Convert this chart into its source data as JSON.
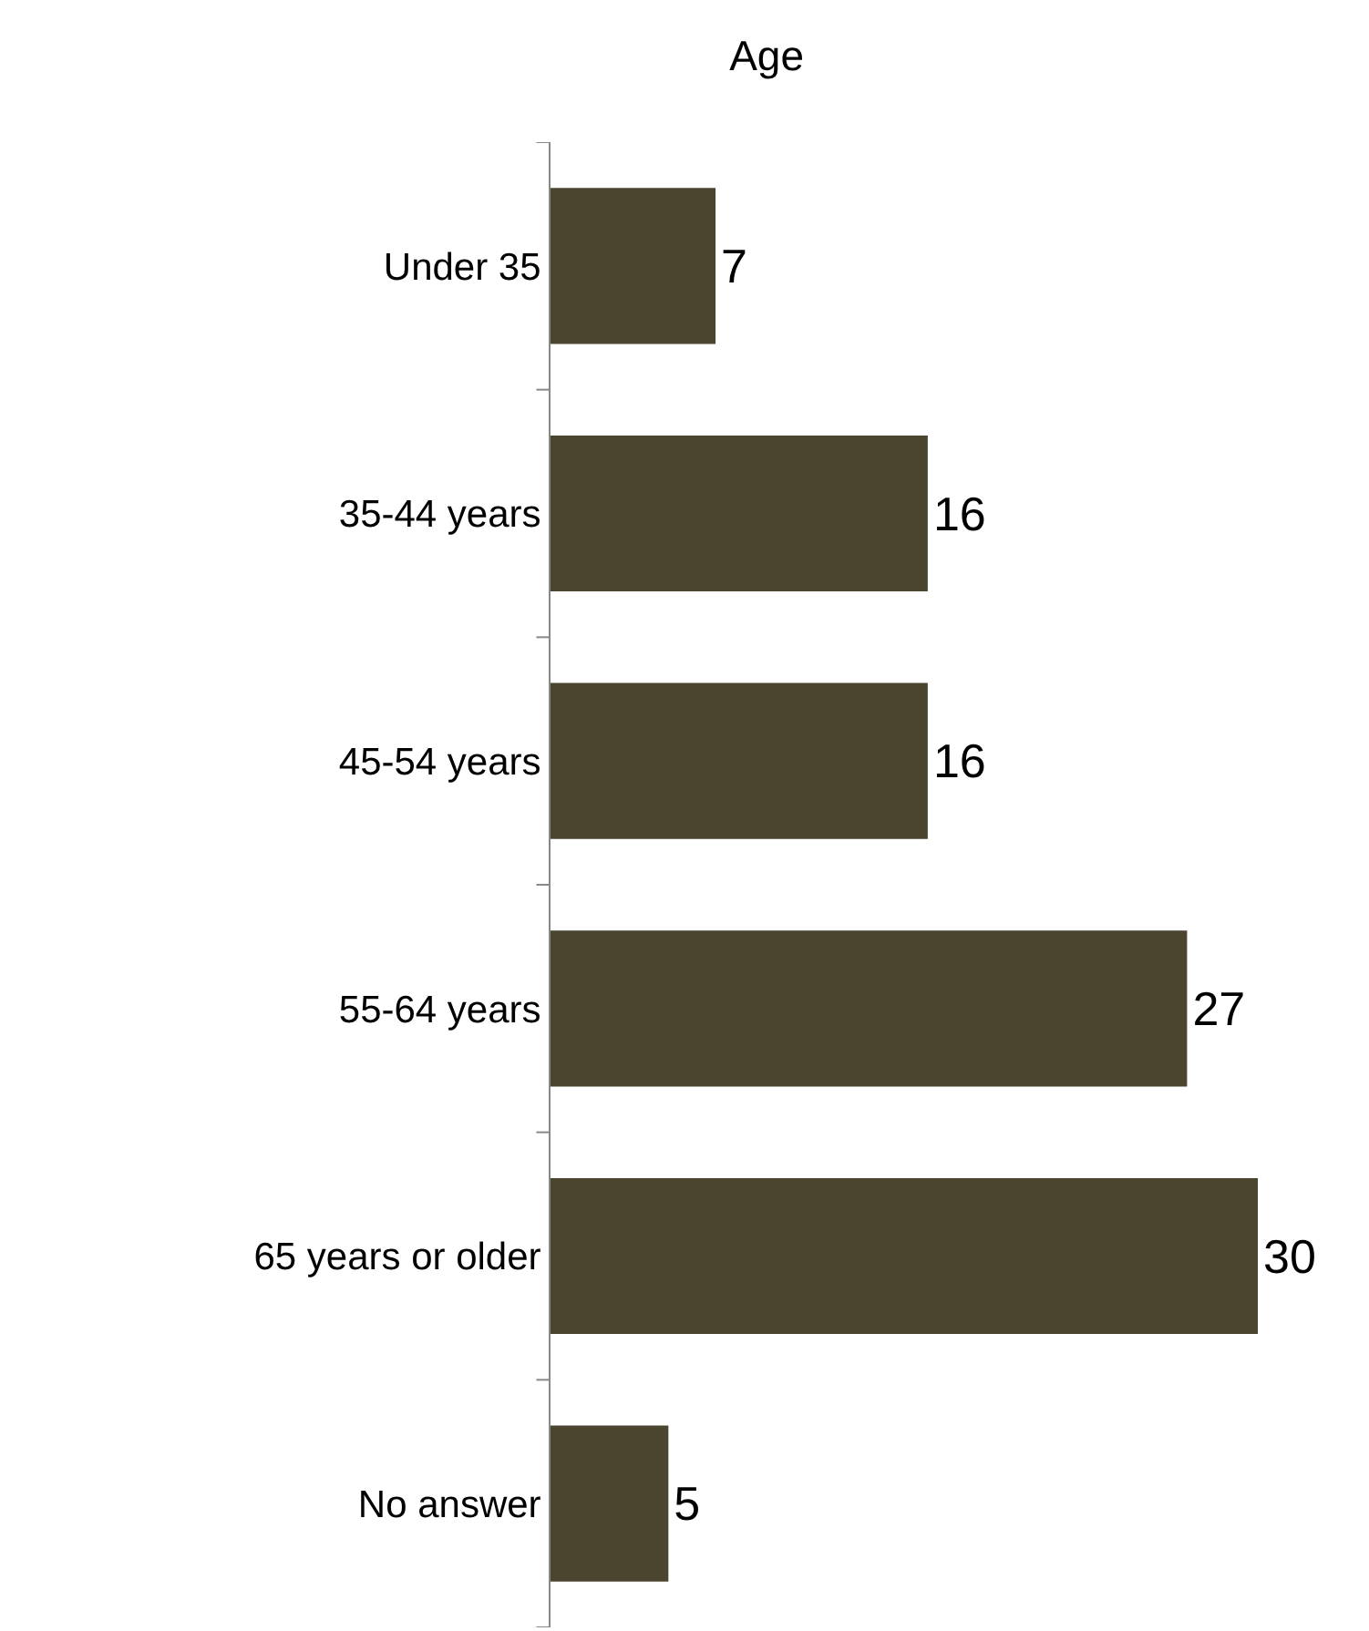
{
  "chart_data": {
    "type": "bar",
    "orientation": "horizontal",
    "title": "Age",
    "categories": [
      "Under 35",
      "35-44 years",
      "45-54 years",
      "55-64 years",
      "65 years or older",
      "No answer"
    ],
    "values": [
      7,
      16,
      16,
      27,
      30,
      5
    ],
    "color": "#4b4530",
    "data_labels": true
  }
}
